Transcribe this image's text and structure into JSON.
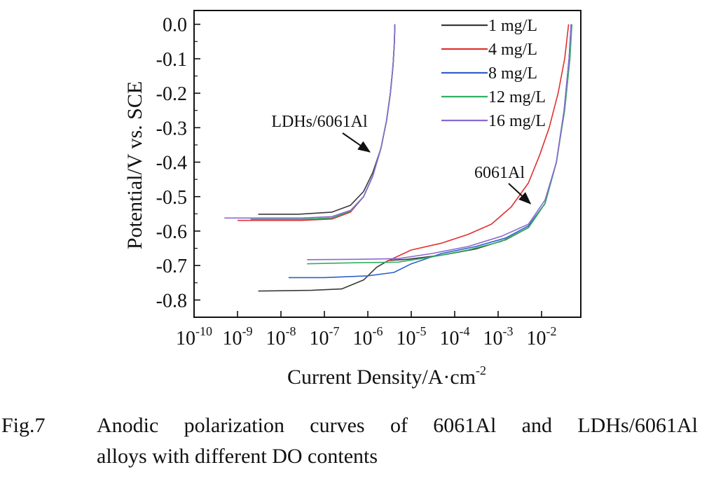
{
  "caption": {
    "label": "Fig.7",
    "line1": "Anodic polarization curves of 6061Al and LDHs/6061Al",
    "line2": "alloys with different DO contents"
  },
  "chart_data": {
    "type": "line",
    "xlabel": "Current Density/A·cm",
    "xlabel_sup": "-2",
    "ylabel": "Potential/V vs. SCE",
    "x_scale": "log",
    "xlim": [
      1e-10,
      0.08
    ],
    "ylim": [
      -0.85,
      0.04
    ],
    "x_ticks": [
      {
        "base": "10",
        "exp": "-10",
        "value": 1e-10
      },
      {
        "base": "10",
        "exp": "-9",
        "value": 1e-09
      },
      {
        "base": "10",
        "exp": "-8",
        "value": 1e-08
      },
      {
        "base": "10",
        "exp": "-7",
        "value": 1e-07
      },
      {
        "base": "10",
        "exp": "-6",
        "value": 1e-06
      },
      {
        "base": "10",
        "exp": "-5",
        "value": 1e-05
      },
      {
        "base": "10",
        "exp": "-4",
        "value": 0.0001
      },
      {
        "base": "10",
        "exp": "-3",
        "value": 0.001
      },
      {
        "base": "10",
        "exp": "-2",
        "value": 0.01
      }
    ],
    "y_ticks": [
      {
        "label": "0.0",
        "value": 0.0
      },
      {
        "label": "-0.1",
        "value": -0.1
      },
      {
        "label": "-0.2",
        "value": -0.2
      },
      {
        "label": "-0.3",
        "value": -0.3
      },
      {
        "label": "-0.4",
        "value": -0.4
      },
      {
        "label": "-0.5",
        "value": -0.5
      },
      {
        "label": "-0.6",
        "value": -0.6
      },
      {
        "label": "-0.7",
        "value": -0.7
      },
      {
        "label": "-0.8",
        "value": -0.8
      }
    ],
    "grid": false,
    "legend_position": "top-right",
    "series": [
      {
        "name": "1 mg/L",
        "color": "#3a3a3a",
        "ldh": [
          [
            3e-09,
            -0.551
          ],
          [
            2.5e-08,
            -0.551
          ],
          [
            1.5e-07,
            -0.545
          ],
          [
            4e-07,
            -0.525
          ],
          [
            8e-07,
            -0.485
          ],
          [
            1.3e-06,
            -0.43
          ],
          [
            2e-06,
            -0.36
          ],
          [
            2.7e-06,
            -0.28
          ],
          [
            3.3e-06,
            -0.2
          ],
          [
            3.8e-06,
            -0.12
          ],
          [
            4.1e-06,
            -0.05
          ],
          [
            4.2e-06,
            0.0
          ]
        ],
        "al": [
          [
            3e-09,
            -0.774
          ],
          [
            5e-08,
            -0.772
          ],
          [
            2.5e-07,
            -0.768
          ],
          [
            8e-07,
            -0.742
          ],
          [
            1.6e-06,
            -0.705
          ],
          [
            3e-06,
            -0.685
          ],
          [
            8e-06,
            -0.682
          ],
          [
            5e-05,
            -0.67
          ],
          [
            0.0003,
            -0.652
          ],
          [
            0.0015,
            -0.625
          ],
          [
            0.005,
            -0.59
          ],
          [
            0.012,
            -0.52
          ],
          [
            0.022,
            -0.4
          ],
          [
            0.033,
            -0.25
          ],
          [
            0.043,
            -0.1
          ],
          [
            0.048,
            0.0
          ]
        ]
      },
      {
        "name": "4 mg/L",
        "color": "#e03030",
        "ldh": [
          [
            1e-09,
            -0.569
          ],
          [
            3e-08,
            -0.569
          ],
          [
            1.5e-07,
            -0.565
          ],
          [
            4e-07,
            -0.545
          ],
          [
            8e-07,
            -0.5
          ],
          [
            1.3e-06,
            -0.44
          ],
          [
            2e-06,
            -0.36
          ],
          [
            2.7e-06,
            -0.28
          ],
          [
            3.3e-06,
            -0.2
          ],
          [
            3.8e-06,
            -0.12
          ],
          [
            4.1e-06,
            -0.05
          ],
          [
            4.2e-06,
            0.0
          ]
        ],
        "al": [
          [
            2.5e-06,
            -0.69
          ],
          [
            1e-05,
            -0.655
          ],
          [
            5e-05,
            -0.635
          ],
          [
            0.0002,
            -0.61
          ],
          [
            0.0007,
            -0.58
          ],
          [
            0.002,
            -0.53
          ],
          [
            0.005,
            -0.46
          ],
          [
            0.009,
            -0.38
          ],
          [
            0.015,
            -0.3
          ],
          [
            0.024,
            -0.2
          ],
          [
            0.034,
            -0.1
          ],
          [
            0.042,
            0.0
          ]
        ]
      },
      {
        "name": "8 mg/L",
        "color": "#3060c8",
        "ldh": [
          [
            2e-09,
            -0.566
          ],
          [
            3e-08,
            -0.566
          ],
          [
            1.5e-07,
            -0.562
          ],
          [
            4e-07,
            -0.542
          ],
          [
            8e-07,
            -0.5
          ],
          [
            1.3e-06,
            -0.44
          ],
          [
            2e-06,
            -0.36
          ],
          [
            2.7e-06,
            -0.28
          ],
          [
            3.3e-06,
            -0.2
          ],
          [
            3.8e-06,
            -0.12
          ],
          [
            4.1e-06,
            -0.05
          ],
          [
            4.2e-06,
            0.0
          ]
        ],
        "al": [
          [
            1.5e-08,
            -0.735
          ],
          [
            1e-07,
            -0.735
          ],
          [
            1e-06,
            -0.73
          ],
          [
            4e-06,
            -0.72
          ],
          [
            1e-05,
            -0.695
          ],
          [
            5e-05,
            -0.665
          ],
          [
            0.0003,
            -0.645
          ],
          [
            0.0015,
            -0.62
          ],
          [
            0.005,
            -0.585
          ],
          [
            0.012,
            -0.52
          ],
          [
            0.022,
            -0.4
          ],
          [
            0.033,
            -0.25
          ],
          [
            0.043,
            -0.1
          ],
          [
            0.048,
            0.0
          ]
        ]
      },
      {
        "name": "12 mg/L",
        "color": "#30b060",
        "ldh": [
          [
            2e-09,
            -0.566
          ],
          [
            3e-08,
            -0.566
          ],
          [
            1.5e-07,
            -0.562
          ],
          [
            4e-07,
            -0.542
          ],
          [
            8e-07,
            -0.5
          ],
          [
            1.3e-06,
            -0.44
          ],
          [
            2e-06,
            -0.36
          ],
          [
            2.7e-06,
            -0.28
          ],
          [
            3.3e-06,
            -0.2
          ],
          [
            3.8e-06,
            -0.12
          ],
          [
            4.1e-06,
            -0.05
          ],
          [
            4.2e-06,
            0.0
          ]
        ],
        "al": [
          [
            4e-08,
            -0.695
          ],
          [
            5e-07,
            -0.692
          ],
          [
            5e-06,
            -0.69
          ],
          [
            3e-05,
            -0.675
          ],
          [
            0.0002,
            -0.655
          ],
          [
            0.0012,
            -0.63
          ],
          [
            0.005,
            -0.59
          ],
          [
            0.012,
            -0.52
          ],
          [
            0.022,
            -0.4
          ],
          [
            0.034,
            -0.25
          ],
          [
            0.045,
            -0.1
          ],
          [
            0.05,
            0.0
          ]
        ]
      },
      {
        "name": "16 mg/L",
        "color": "#8a6ad0",
        "ldh": [
          [
            5e-10,
            -0.562
          ],
          [
            3e-08,
            -0.562
          ],
          [
            1.5e-07,
            -0.558
          ],
          [
            4e-07,
            -0.54
          ],
          [
            8e-07,
            -0.5
          ],
          [
            1.3e-06,
            -0.44
          ],
          [
            2e-06,
            -0.36
          ],
          [
            2.7e-06,
            -0.28
          ],
          [
            3.3e-06,
            -0.2
          ],
          [
            3.8e-06,
            -0.12
          ],
          [
            4.1e-06,
            -0.05
          ],
          [
            4.2e-06,
            0.0
          ]
        ],
        "al": [
          [
            4e-08,
            -0.683
          ],
          [
            5e-07,
            -0.682
          ],
          [
            5e-06,
            -0.68
          ],
          [
            3e-05,
            -0.665
          ],
          [
            0.0002,
            -0.645
          ],
          [
            0.0012,
            -0.615
          ],
          [
            0.005,
            -0.58
          ],
          [
            0.012,
            -0.51
          ],
          [
            0.022,
            -0.4
          ],
          [
            0.033,
            -0.25
          ],
          [
            0.043,
            -0.1
          ],
          [
            0.048,
            0.0
          ]
        ]
      }
    ],
    "annotations": [
      {
        "text": "LDHs/6061Al",
        "x": 1.1e-06,
        "y": -0.37
      },
      {
        "text": "6061Al",
        "x": 0.0055,
        "y": -0.52
      }
    ]
  }
}
